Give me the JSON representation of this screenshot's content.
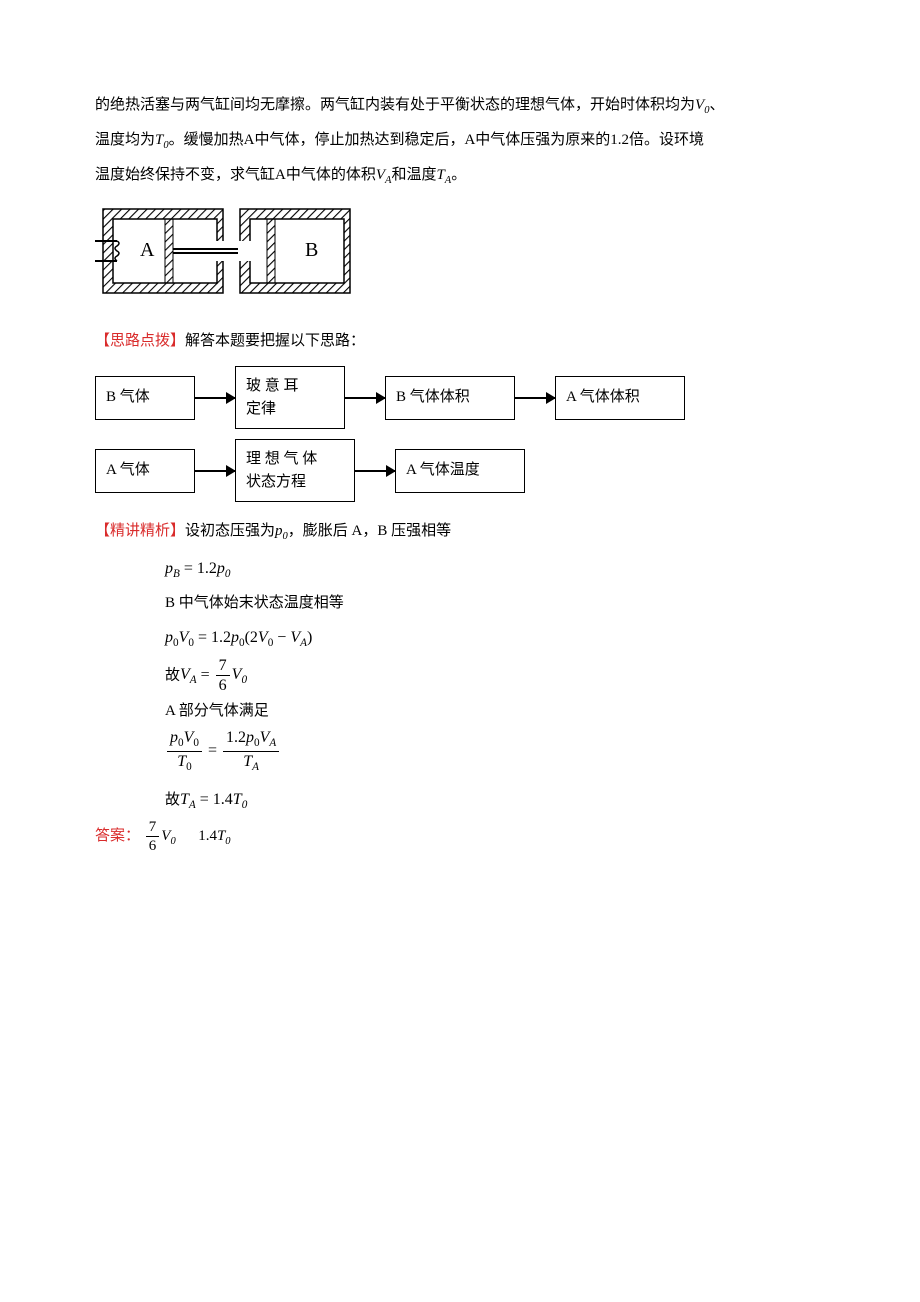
{
  "para1": "的绝热活塞与两气缸间均无摩擦。两气缸内装有处于平衡状态的理想气体，开始时体积均为",
  "V0": "V",
  "V0sub": "0",
  "para1b": "、",
  "para2a": "温度均为",
  "T0": "T",
  "T0sub": "0",
  "para2b": "。缓慢加热A中气体，停止加热达到稳定后，A中气体压强为原来的1.2倍。设环境",
  "para3a": "温度始终保持不变，求气缸A中气体的体积",
  "VA": "V",
  "VAsub": "A",
  "para3b": "和温度",
  "TA": "T",
  "TAsub": "A",
  "para3c": "。",
  "cylinders": {
    "labelA": "A",
    "labelB": "B",
    "hatch_color": "#000000",
    "bg": "#ffffff"
  },
  "hint_label": "【思路点拨】",
  "hint_text": "解答本题要把握以下思路：",
  "flow1": {
    "boxes": [
      "B 气体",
      "玻 意 耳\n定律",
      "B 气体体积",
      "A 气体体积"
    ],
    "widths": [
      100,
      110,
      130,
      130
    ]
  },
  "flow2": {
    "boxes": [
      "A 气体",
      "理 想 气 体\n状态方程",
      "A 气体温度"
    ],
    "widths": [
      100,
      120,
      130
    ]
  },
  "solution_label": "【精讲精析】",
  "solution_intro_a": "设初态压强为",
  "p0": "p",
  "p0sub": "0",
  "solution_intro_b": "，膨胀后 A，B 压强相等",
  "equations": {
    "eq1": {
      "lhs": "p",
      "lhs_sub": "B",
      "rhs_coef": "= 1.2",
      "rhs": "p",
      "rhs_sub": "0"
    },
    "line2": "B 中气体始末状态温度相等",
    "eq3_text": "p₀V₀ = 1.2p₀(2V₀ − V_A)",
    "eq4_prefix": "故",
    "eq4": {
      "V": "V",
      "Vsub": "A",
      "eq": "=",
      "num": "7",
      "den": "6",
      "V2": "V",
      "V2sub": "0"
    },
    "line5": "A 部分气体满足",
    "eq6": {
      "l_num_a": "p",
      "l_num_a_sub": "0",
      "l_num_b": "V",
      "l_num_b_sub": "0",
      "l_den": "T",
      "l_den_sub": "0",
      "r_num_coef": "1.2",
      "r_num_a": "p",
      "r_num_a_sub": "0",
      "r_num_b": "V",
      "r_num_b_sub": "A",
      "r_den": "T",
      "r_den_sub": "A"
    },
    "eq7_prefix": "故",
    "eq7": {
      "T": "T",
      "Tsub": "A",
      "val": "= 1.4",
      "T2": "T",
      "T2sub": "0"
    }
  },
  "answer_label": "答案：",
  "answer": {
    "frac_num": "7",
    "frac_den": "6",
    "V": "V",
    "Vsub": "0",
    "gap": "      ",
    "coef": "1.4",
    "T": "T",
    "Tsub": "0"
  },
  "colors": {
    "text": "#000000",
    "red": "#d92b2b",
    "border": "#000000"
  }
}
